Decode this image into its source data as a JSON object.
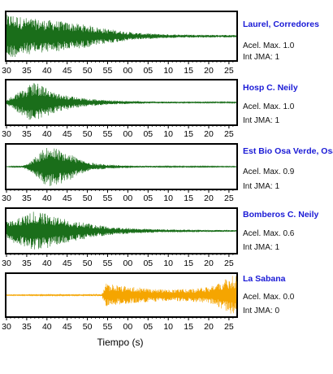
{
  "chart_data": {
    "type": "line",
    "xlabel": "Tiempo (s)",
    "x_ticks": [
      "30",
      "35",
      "40",
      "45",
      "50",
      "55",
      "00",
      "05",
      "10",
      "15",
      "20",
      "25"
    ],
    "series": [
      {
        "name": "Laurel, Corredores",
        "accel_label": "Acel. Max. 1.0",
        "int_label": "Int JMA: 1",
        "color": "#1a6e1a",
        "envelope": [
          [
            0,
            0.95
          ],
          [
            1,
            1.0
          ],
          [
            4,
            0.85
          ],
          [
            8,
            0.75
          ],
          [
            12,
            0.7
          ],
          [
            16,
            0.6
          ],
          [
            20,
            0.5
          ],
          [
            24,
            0.35
          ],
          [
            28,
            0.25
          ],
          [
            32,
            0.15
          ],
          [
            40,
            0.08
          ],
          [
            57,
            0.05
          ]
        ]
      },
      {
        "name": "Hosp C. Neily",
        "accel_label": "Acel. Max. 1.0",
        "int_label": "Int JMA: 1",
        "color": "#1a6e1a",
        "envelope": [
          [
            0,
            0.1
          ],
          [
            2,
            0.4
          ],
          [
            4,
            0.65
          ],
          [
            6,
            0.9
          ],
          [
            7,
            1.0
          ],
          [
            9,
            0.8
          ],
          [
            12,
            0.5
          ],
          [
            16,
            0.3
          ],
          [
            20,
            0.18
          ],
          [
            26,
            0.1
          ],
          [
            35,
            0.05
          ],
          [
            57,
            0.03
          ]
        ]
      },
      {
        "name": "Est Bio Osa Verde, Osa",
        "accel_label": "Acel. Max. 0.9",
        "int_label": "Int JMA: 1",
        "color": "#1a6e1a",
        "envelope": [
          [
            0,
            0.01
          ],
          [
            4,
            0.05
          ],
          [
            6,
            0.25
          ],
          [
            8,
            0.65
          ],
          [
            10,
            1.0
          ],
          [
            12,
            0.9
          ],
          [
            15,
            0.75
          ],
          [
            17,
            0.5
          ],
          [
            20,
            0.22
          ],
          [
            25,
            0.1
          ],
          [
            32,
            0.05
          ],
          [
            40,
            0.03
          ],
          [
            57,
            0.02
          ]
        ]
      },
      {
        "name": "Bomberos C. Neily",
        "accel_label": "Acel. Max. 0.6",
        "int_label": "Int JMA: 1",
        "color": "#1a6e1a",
        "envelope": [
          [
            0,
            0.45
          ],
          [
            2,
            0.6
          ],
          [
            5,
            0.8
          ],
          [
            7,
            1.0
          ],
          [
            10,
            0.85
          ],
          [
            14,
            0.6
          ],
          [
            18,
            0.45
          ],
          [
            22,
            0.3
          ],
          [
            26,
            0.2
          ],
          [
            32,
            0.12
          ],
          [
            40,
            0.07
          ],
          [
            57,
            0.04
          ]
        ]
      },
      {
        "name": "La Sabana",
        "accel_label": "Acel. Max. 0.0",
        "int_label": "Int JMA: 0",
        "color": "#f5a500",
        "envelope": [
          [
            0,
            0.02
          ],
          [
            22,
            0.04
          ],
          [
            23.6,
            0.06
          ],
          [
            24.5,
            0.6
          ],
          [
            26,
            0.55
          ],
          [
            30,
            0.45
          ],
          [
            35,
            0.35
          ],
          [
            40,
            0.3
          ],
          [
            45,
            0.32
          ],
          [
            49,
            0.4
          ],
          [
            52,
            0.55
          ],
          [
            54,
            0.8
          ],
          [
            55.5,
            1.0
          ],
          [
            57,
            1.0
          ]
        ]
      }
    ]
  }
}
